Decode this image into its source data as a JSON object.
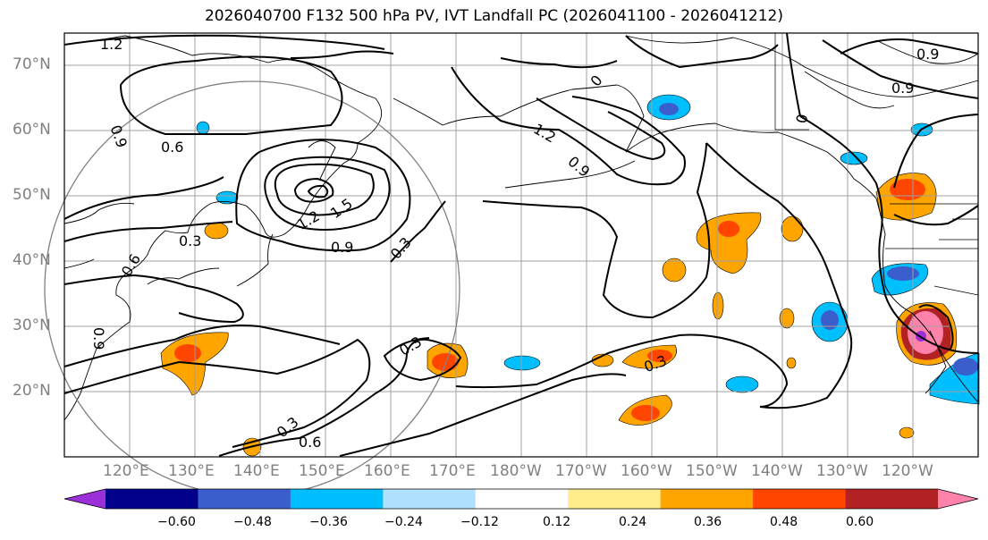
{
  "title": "2026040700 F132 500 hPa PV, IVT Landfall PC (2026041100 - 2026041212)",
  "colors": {
    "land_line": "#000000",
    "grid": "#a0a0a0",
    "circle": "#808080",
    "contour": "#000000"
  },
  "lat_labels": [
    "70°N",
    "60°N",
    "50°N",
    "40°N",
    "30°N",
    "20°N"
  ],
  "lon_labels": [
    "120°E",
    "130°E",
    "140°E",
    "150°E",
    "160°E",
    "170°E",
    "180°W",
    "170°W",
    "160°W",
    "150°W",
    "140°W",
    "130°W",
    "120°W"
  ],
  "contour_labels": [
    "1.2",
    "0.9",
    "0.6",
    "0.3",
    "1.5",
    "1.2",
    "0.9",
    "0.3",
    "0",
    "1.2",
    "0.9",
    "0.3",
    "0.9",
    "0.6",
    "0.3",
    "0.6",
    "0.3",
    "0",
    "0.9",
    "0.9"
  ],
  "colorbar": {
    "ticks": [
      "−0.60",
      "−0.48",
      "−0.36",
      "−0.24",
      "−0.12",
      "0.12",
      "0.24",
      "0.36",
      "0.48",
      "0.60"
    ],
    "colors": [
      "#9b30d9",
      "#00008b",
      "#3a5fcd",
      "#00bfff",
      "#b0e2ff",
      "#ffffff",
      "#ffec8b",
      "#ffa500",
      "#ff4500",
      "#b22222",
      "#ff82ab"
    ]
  }
}
